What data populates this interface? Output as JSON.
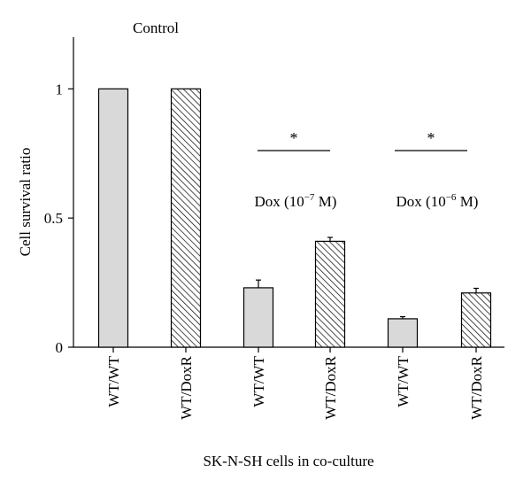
{
  "chart_data": {
    "type": "bar",
    "ylabel": "Cell survival ratio",
    "xlabel": "SK-N-SH cells in co-culture",
    "ylim": [
      0,
      1.2
    ],
    "yticks": [
      {
        "value": 0,
        "label": "0"
      },
      {
        "value": 0.5,
        "label": "0.5"
      },
      {
        "value": 1,
        "label": "1"
      }
    ],
    "grid": false,
    "colors": {
      "solid": "#d9d9d9",
      "hatch": "#000000"
    },
    "categories": [
      "WT/WT",
      "WT/DoxR",
      "WT/WT",
      "WT/DoxR",
      "WT/WT",
      "WT/DoxR"
    ],
    "values": [
      1.0,
      1.0,
      0.23,
      0.41,
      0.11,
      0.21
    ],
    "errors": [
      0.0,
      0.0,
      0.03,
      0.015,
      0.008,
      0.018
    ],
    "fills": [
      "solid",
      "hatch",
      "solid",
      "hatch",
      "solid",
      "hatch"
    ],
    "groups": [
      {
        "label": "Control",
        "bars": [
          0,
          1
        ],
        "significance": ""
      },
      {
        "label_main": "Dox (10",
        "label_exp": "−7",
        "label_end": " M)",
        "bars": [
          2,
          3
        ],
        "significance": "*"
      },
      {
        "label_main": "Dox (10",
        "label_exp": "−6",
        "label_end": " M)",
        "bars": [
          4,
          5
        ],
        "significance": "*"
      }
    ]
  }
}
